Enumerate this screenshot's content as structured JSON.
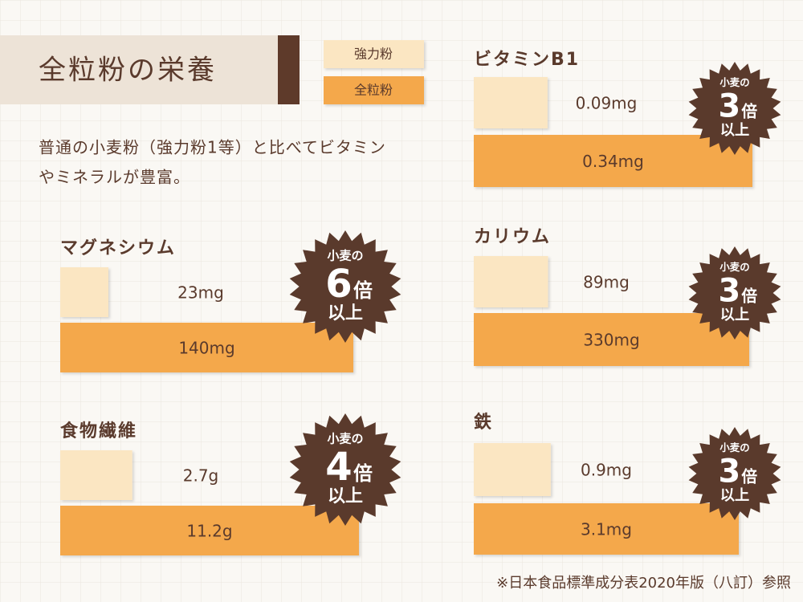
{
  "header": {
    "title": "全粒粉の栄養"
  },
  "description": [
    "普通の小麦粉（強力粉1等）と比べてビタミン",
    "やミネラルが豊富。"
  ],
  "legend": [
    {
      "label": "強力粉",
      "color": "#fbe6c2"
    },
    {
      "label": "全粒粉",
      "color": "#f4a84c"
    }
  ],
  "chart_data": [
    {
      "type": "bar",
      "title": "ビタミンB1",
      "values": [
        0.09,
        0.34
      ],
      "value_labels": [
        "0.09mg",
        "0.34mg"
      ],
      "badge": {
        "prefix": "小麦の",
        "multiplier": 3,
        "suffix": "倍",
        "note": "以上"
      }
    },
    {
      "type": "bar",
      "title": "マグネシウム",
      "values": [
        23,
        140
      ],
      "value_labels": [
        "23mg",
        "140mg"
      ],
      "badge": {
        "prefix": "小麦の",
        "multiplier": 6,
        "suffix": "倍",
        "note": "以上"
      }
    },
    {
      "type": "bar",
      "title": "カリウム",
      "values": [
        89,
        330
      ],
      "value_labels": [
        "89mg",
        "330mg"
      ],
      "badge": {
        "prefix": "小麦の",
        "multiplier": 3,
        "suffix": "倍",
        "note": "以上"
      }
    },
    {
      "type": "bar",
      "title": "食物繊維",
      "values": [
        2.7,
        11.2
      ],
      "value_labels": [
        "2.7g",
        "11.2g"
      ],
      "badge": {
        "prefix": "小麦の",
        "multiplier": 4,
        "suffix": "倍",
        "note": "以上"
      }
    },
    {
      "type": "bar",
      "title": "鉄",
      "values": [
        0.9,
        3.1
      ],
      "value_labels": [
        "0.9mg",
        "3.1mg"
      ],
      "badge": {
        "prefix": "小麦の",
        "multiplier": 3,
        "suffix": "倍",
        "note": "以上"
      }
    }
  ],
  "footnote": "※日本食品標準成分表2020年版（八訂）参照"
}
